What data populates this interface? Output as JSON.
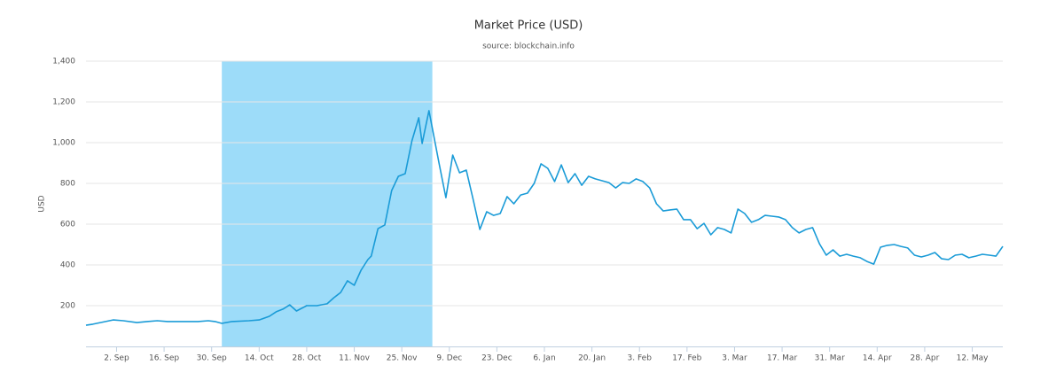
{
  "chart_data": {
    "type": "line",
    "title": "Market Price (USD)",
    "subtitle": "source: blockchain.info",
    "y_label": "USD",
    "color": "#1a9bd7",
    "band_color": "#9ddcf9",
    "band": [
      31,
      93
    ],
    "grid": true,
    "xlim": [
      -9,
      261
    ],
    "xticks": [
      {
        "value": 0,
        "label": "2. Sep"
      },
      {
        "value": 14,
        "label": "16. Sep"
      },
      {
        "value": 28,
        "label": "30. Sep"
      },
      {
        "value": 42,
        "label": "14. Oct"
      },
      {
        "value": 56,
        "label": "28. Oct"
      },
      {
        "value": 70,
        "label": "11. Nov"
      },
      {
        "value": 84,
        "label": "25. Nov"
      },
      {
        "value": 98,
        "label": "9. Dec"
      },
      {
        "value": 112,
        "label": "23. Dec"
      },
      {
        "value": 126,
        "label": "6. Jan"
      },
      {
        "value": 140,
        "label": "20. Jan"
      },
      {
        "value": 154,
        "label": "3. Feb"
      },
      {
        "value": 168,
        "label": "17. Feb"
      },
      {
        "value": 182,
        "label": "3. Mar"
      },
      {
        "value": 196,
        "label": "17. Mar"
      },
      {
        "value": 210,
        "label": "31. Mar"
      },
      {
        "value": 224,
        "label": "14. Apr"
      },
      {
        "value": 238,
        "label": "28. Apr"
      },
      {
        "value": 252,
        "label": "12. May"
      }
    ],
    "ylim": [
      0,
      1400
    ],
    "yticks": [
      {
        "value": 200,
        "label": "200"
      },
      {
        "value": 400,
        "label": "400"
      },
      {
        "value": 600,
        "label": "600"
      },
      {
        "value": 800,
        "label": "800"
      },
      {
        "value": 1000,
        "label": "1,000"
      },
      {
        "value": 1200,
        "label": "1,200"
      },
      {
        "value": 1400,
        "label": "1,400"
      }
    ],
    "x": [
      -9,
      -7,
      -1,
      2,
      6,
      9,
      12,
      15,
      19,
      24,
      27,
      29,
      31,
      34,
      39,
      42,
      45,
      47,
      49,
      51,
      53,
      56,
      59,
      62,
      64,
      66,
      68,
      70,
      72,
      74,
      75,
      77,
      79,
      81,
      83,
      85,
      87,
      89,
      90,
      92,
      95,
      97,
      99,
      101,
      103,
      105,
      107,
      109,
      111,
      113,
      115,
      117,
      119,
      121,
      123,
      125,
      127,
      129,
      131,
      133,
      135,
      137,
      139,
      141,
      143,
      145,
      147,
      149,
      151,
      153,
      155,
      157,
      159,
      161,
      163,
      165,
      167,
      169,
      171,
      173,
      175,
      177,
      179,
      181,
      183,
      185,
      187,
      189,
      191,
      193,
      195,
      197,
      199,
      201,
      203,
      205,
      207,
      209,
      211,
      213,
      215,
      217,
      219,
      221,
      223,
      225,
      227,
      229,
      231,
      233,
      235,
      237,
      239,
      241,
      243,
      245,
      247,
      249,
      251,
      253,
      255,
      257,
      259,
      261
    ],
    "values": [
      104,
      109,
      130,
      126,
      117,
      122,
      126,
      122,
      122,
      122,
      126,
      122,
      113,
      122,
      126,
      130,
      148,
      170,
      183,
      204,
      174,
      200,
      200,
      209,
      239,
      265,
      322,
      300,
      374,
      426,
      443,
      578,
      596,
      765,
      835,
      848,
      1009,
      1122,
      996,
      1157,
      896,
      730,
      939,
      852,
      865,
      722,
      574,
      661,
      643,
      652,
      735,
      700,
      743,
      752,
      800,
      896,
      874,
      809,
      891,
      804,
      848,
      791,
      835,
      822,
      813,
      804,
      778,
      804,
      800,
      822,
      809,
      778,
      700,
      665,
      670,
      674,
      622,
      622,
      578,
      604,
      548,
      583,
      574,
      557,
      674,
      652,
      609,
      622,
      643,
      639,
      635,
      622,
      583,
      557,
      574,
      583,
      504,
      448,
      474,
      443,
      452,
      443,
      435,
      417,
      404,
      487,
      496,
      500,
      491,
      483,
      448,
      439,
      448,
      461,
      430,
      426,
      448,
      452,
      435,
      443,
      452,
      448,
      443,
      491
    ]
  }
}
